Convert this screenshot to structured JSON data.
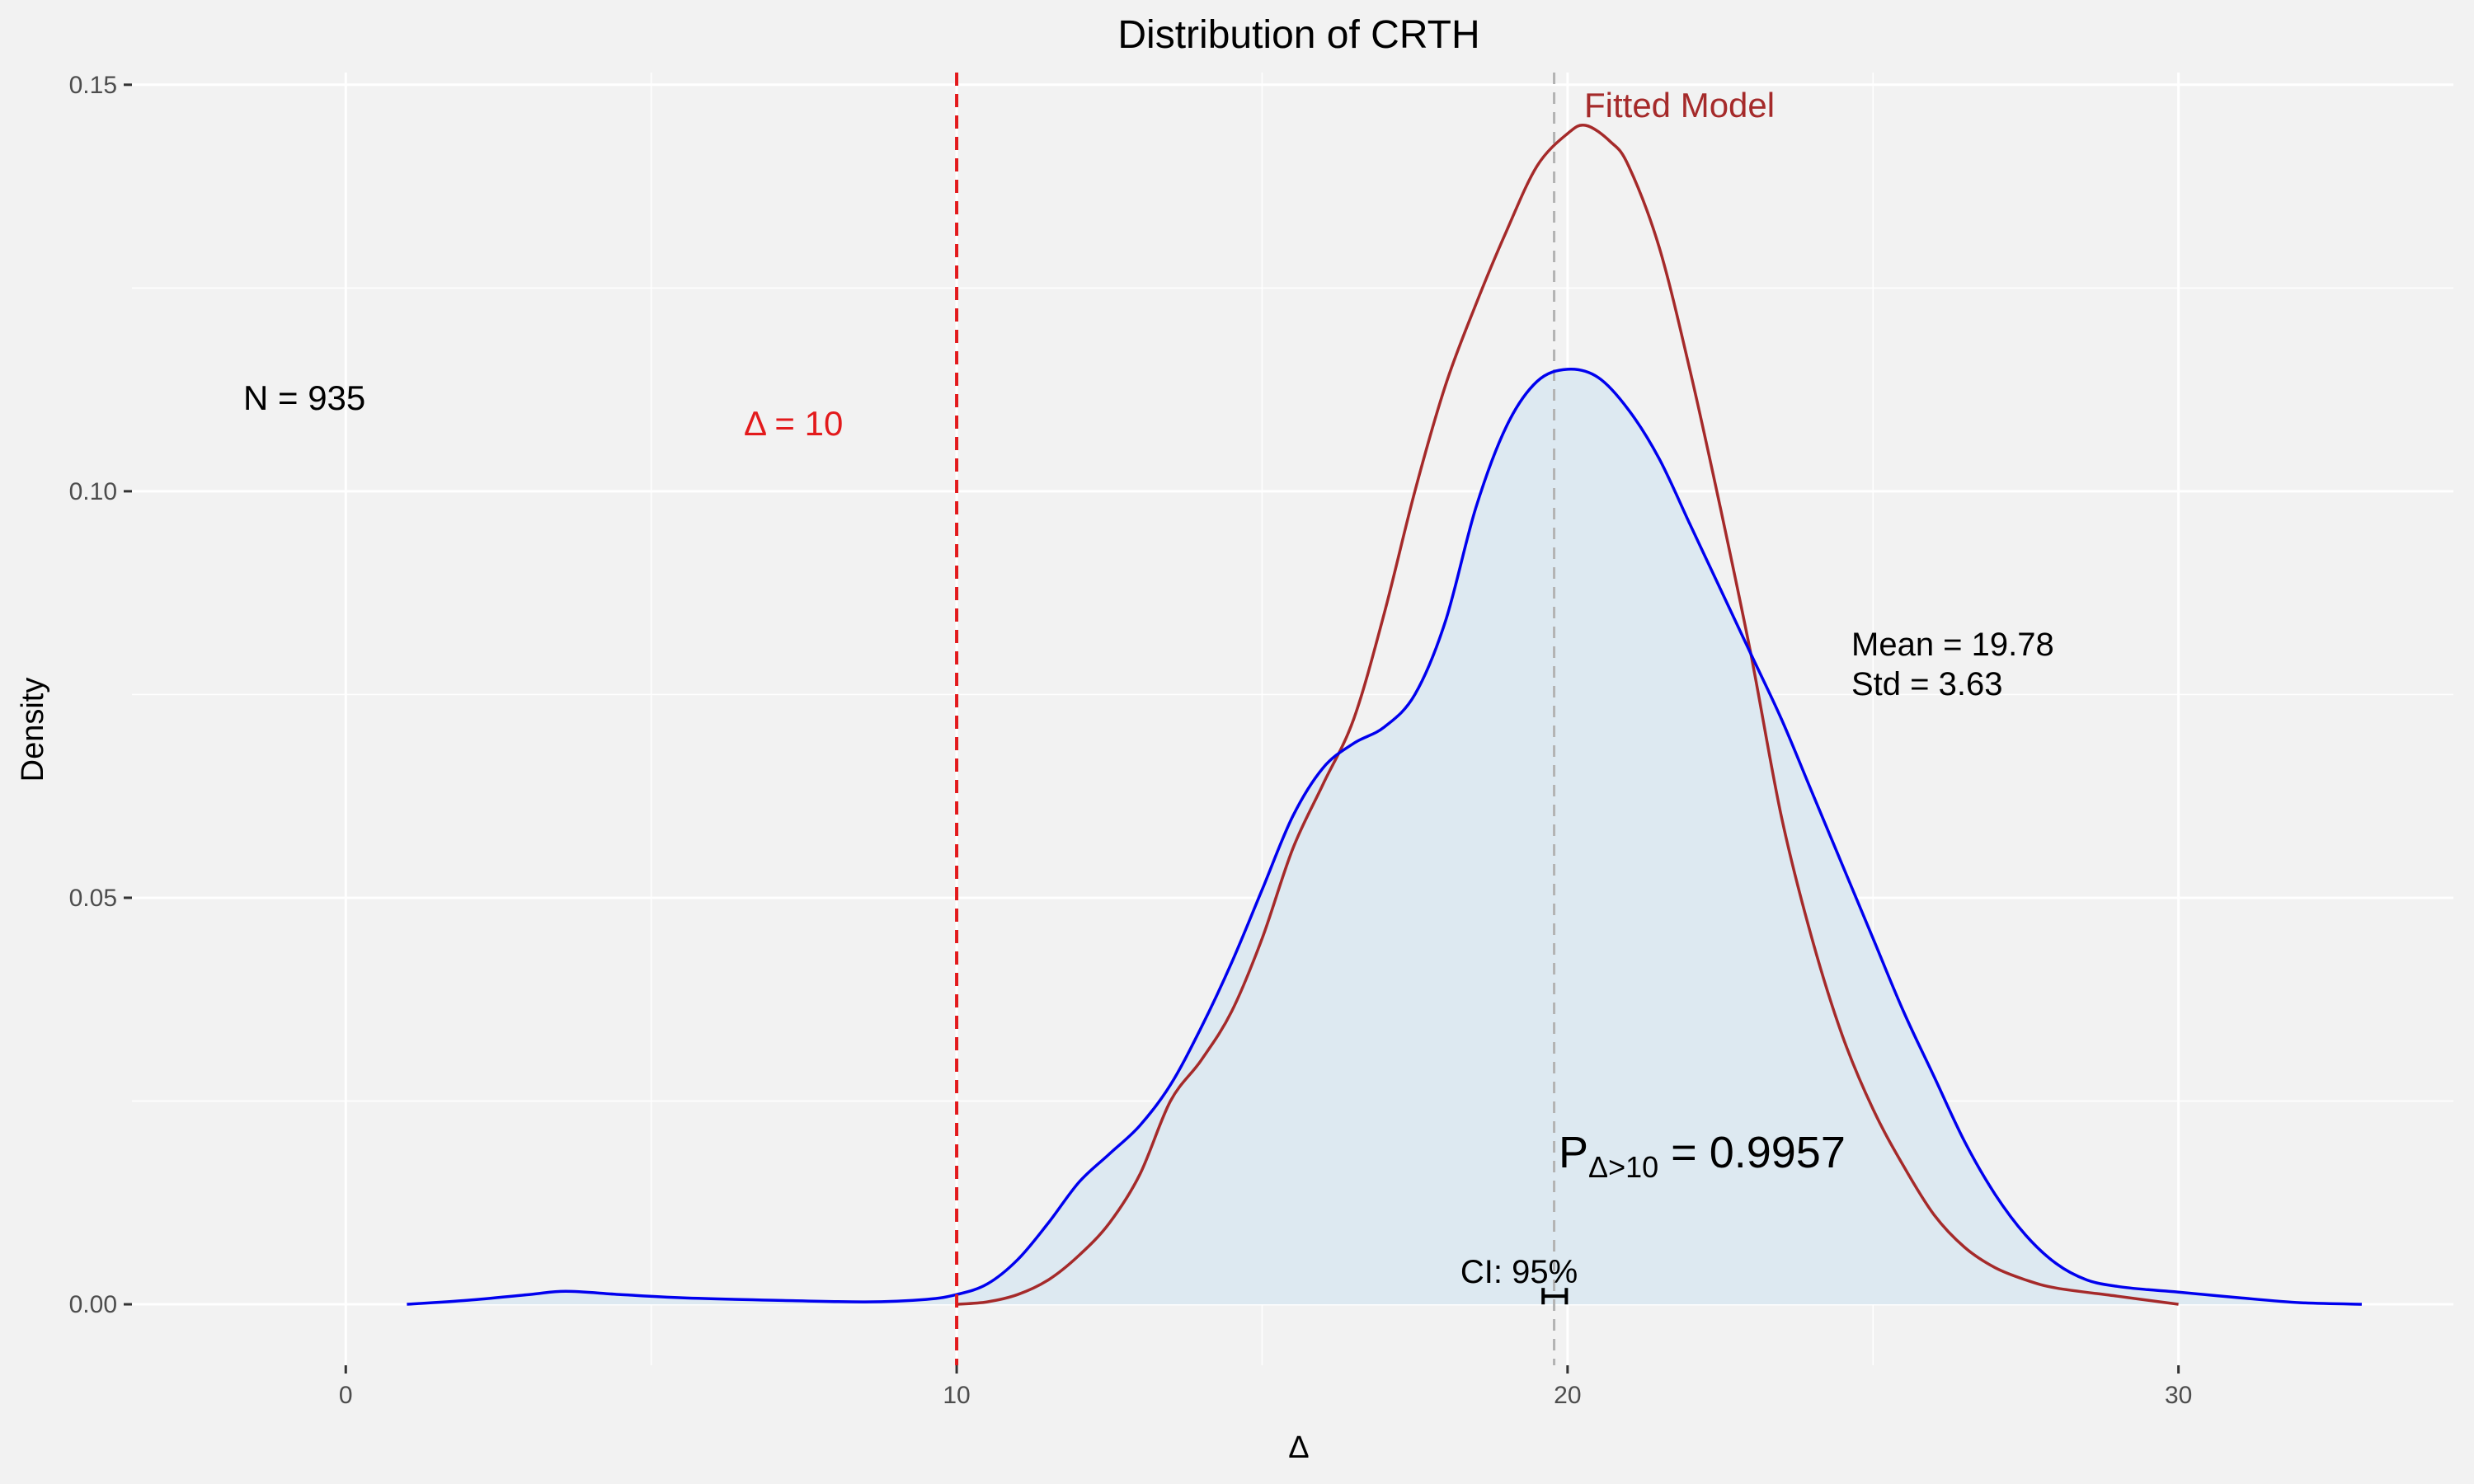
{
  "chart_data": {
    "type": "area",
    "title": "Distribution of CRTH",
    "xlabel": "Δ",
    "ylabel": "Density",
    "xlim": [
      -3.5,
      34.5
    ],
    "ylim": [
      -0.0075,
      0.1515
    ],
    "x_ticks": [
      0,
      10,
      20,
      30
    ],
    "x_tick_labels": [
      "0",
      "10",
      "20",
      "30"
    ],
    "y_ticks": [
      0.0,
      0.05,
      0.1,
      0.15
    ],
    "y_tick_labels": [
      "0.00",
      "0.05",
      "0.10",
      "0.15"
    ],
    "grid": true,
    "series": [
      {
        "color": "#0000ee",
        "fill": "#dde9f1",
        "points": [
          [
            1.0,
            0.0
          ],
          [
            2.0,
            0.0005
          ],
          [
            3.0,
            0.0012
          ],
          [
            3.6,
            0.0016
          ],
          [
            4.5,
            0.0012
          ],
          [
            5.5,
            0.0008
          ],
          [
            7.0,
            0.0005
          ],
          [
            8.5,
            0.0003
          ],
          [
            9.5,
            0.0006
          ],
          [
            10.0,
            0.0012
          ],
          [
            10.5,
            0.0025
          ],
          [
            11.0,
            0.0055
          ],
          [
            11.5,
            0.01
          ],
          [
            12.0,
            0.015
          ],
          [
            12.5,
            0.0185
          ],
          [
            13.0,
            0.022
          ],
          [
            13.5,
            0.027
          ],
          [
            14.0,
            0.034
          ],
          [
            14.5,
            0.042
          ],
          [
            15.0,
            0.051
          ],
          [
            15.5,
            0.06
          ],
          [
            16.0,
            0.066
          ],
          [
            16.5,
            0.069
          ],
          [
            17.0,
            0.071
          ],
          [
            17.5,
            0.075
          ],
          [
            18.0,
            0.084
          ],
          [
            18.5,
            0.098
          ],
          [
            19.0,
            0.108
          ],
          [
            19.5,
            0.1135
          ],
          [
            20.0,
            0.115
          ],
          [
            20.5,
            0.114
          ],
          [
            21.0,
            0.11
          ],
          [
            21.5,
            0.104
          ],
          [
            22.0,
            0.096
          ],
          [
            22.5,
            0.088
          ],
          [
            23.0,
            0.08
          ],
          [
            23.5,
            0.072
          ],
          [
            24.0,
            0.063
          ],
          [
            24.5,
            0.054
          ],
          [
            25.0,
            0.045
          ],
          [
            25.5,
            0.036
          ],
          [
            26.0,
            0.028
          ],
          [
            26.5,
            0.02
          ],
          [
            27.0,
            0.0135
          ],
          [
            27.5,
            0.0085
          ],
          [
            28.0,
            0.005
          ],
          [
            28.5,
            0.003
          ],
          [
            29.0,
            0.0022
          ],
          [
            29.5,
            0.0018
          ],
          [
            30.0,
            0.0015
          ],
          [
            31.0,
            0.0008
          ],
          [
            32.0,
            0.0002
          ],
          [
            33.0,
            0.0
          ]
        ]
      },
      {
        "color": "#a52a2a",
        "points": [
          [
            10.0,
            0.0
          ],
          [
            10.5,
            0.0003
          ],
          [
            11.0,
            0.0012
          ],
          [
            11.5,
            0.003
          ],
          [
            12.0,
            0.006
          ],
          [
            12.5,
            0.01
          ],
          [
            13.0,
            0.016
          ],
          [
            13.5,
            0.025
          ],
          [
            14.0,
            0.03
          ],
          [
            14.5,
            0.036
          ],
          [
            15.0,
            0.045
          ],
          [
            15.5,
            0.056
          ],
          [
            16.0,
            0.064
          ],
          [
            16.5,
            0.072
          ],
          [
            17.0,
            0.085
          ],
          [
            17.5,
            0.1
          ],
          [
            18.0,
            0.113
          ],
          [
            18.5,
            0.123
          ],
          [
            19.0,
            0.132
          ],
          [
            19.5,
            0.14
          ],
          [
            20.0,
            0.144
          ],
          [
            20.3,
            0.145
          ],
          [
            20.7,
            0.143
          ],
          [
            21.0,
            0.14
          ],
          [
            21.5,
            0.13
          ],
          [
            22.0,
            0.115
          ],
          [
            22.5,
            0.098
          ],
          [
            23.0,
            0.08
          ],
          [
            23.5,
            0.06
          ],
          [
            24.0,
            0.045
          ],
          [
            24.5,
            0.033
          ],
          [
            25.0,
            0.024
          ],
          [
            25.5,
            0.017
          ],
          [
            26.0,
            0.011
          ],
          [
            26.5,
            0.007
          ],
          [
            27.0,
            0.0045
          ],
          [
            27.5,
            0.003
          ],
          [
            28.0,
            0.002
          ],
          [
            29.0,
            0.001
          ],
          [
            30.0,
            0.0
          ]
        ]
      }
    ],
    "threshold_line": {
      "x": 10,
      "color": "#e31a1c",
      "label": "Δ = 10"
    },
    "mean_line": {
      "x": 19.78,
      "color": "#b3b3b3"
    },
    "ci": {
      "x_low": 19.6,
      "x_high": 19.98,
      "y": 0.001,
      "label": "CI: 95%"
    },
    "annotations": {
      "n": "N = 935",
      "fitted": "Fitted Model",
      "mean": "Mean = 19.78",
      "std": "Std = 3.63",
      "prob_main": "P",
      "prob_sub": "Δ>10",
      "prob_value": " = 0.9957"
    }
  }
}
